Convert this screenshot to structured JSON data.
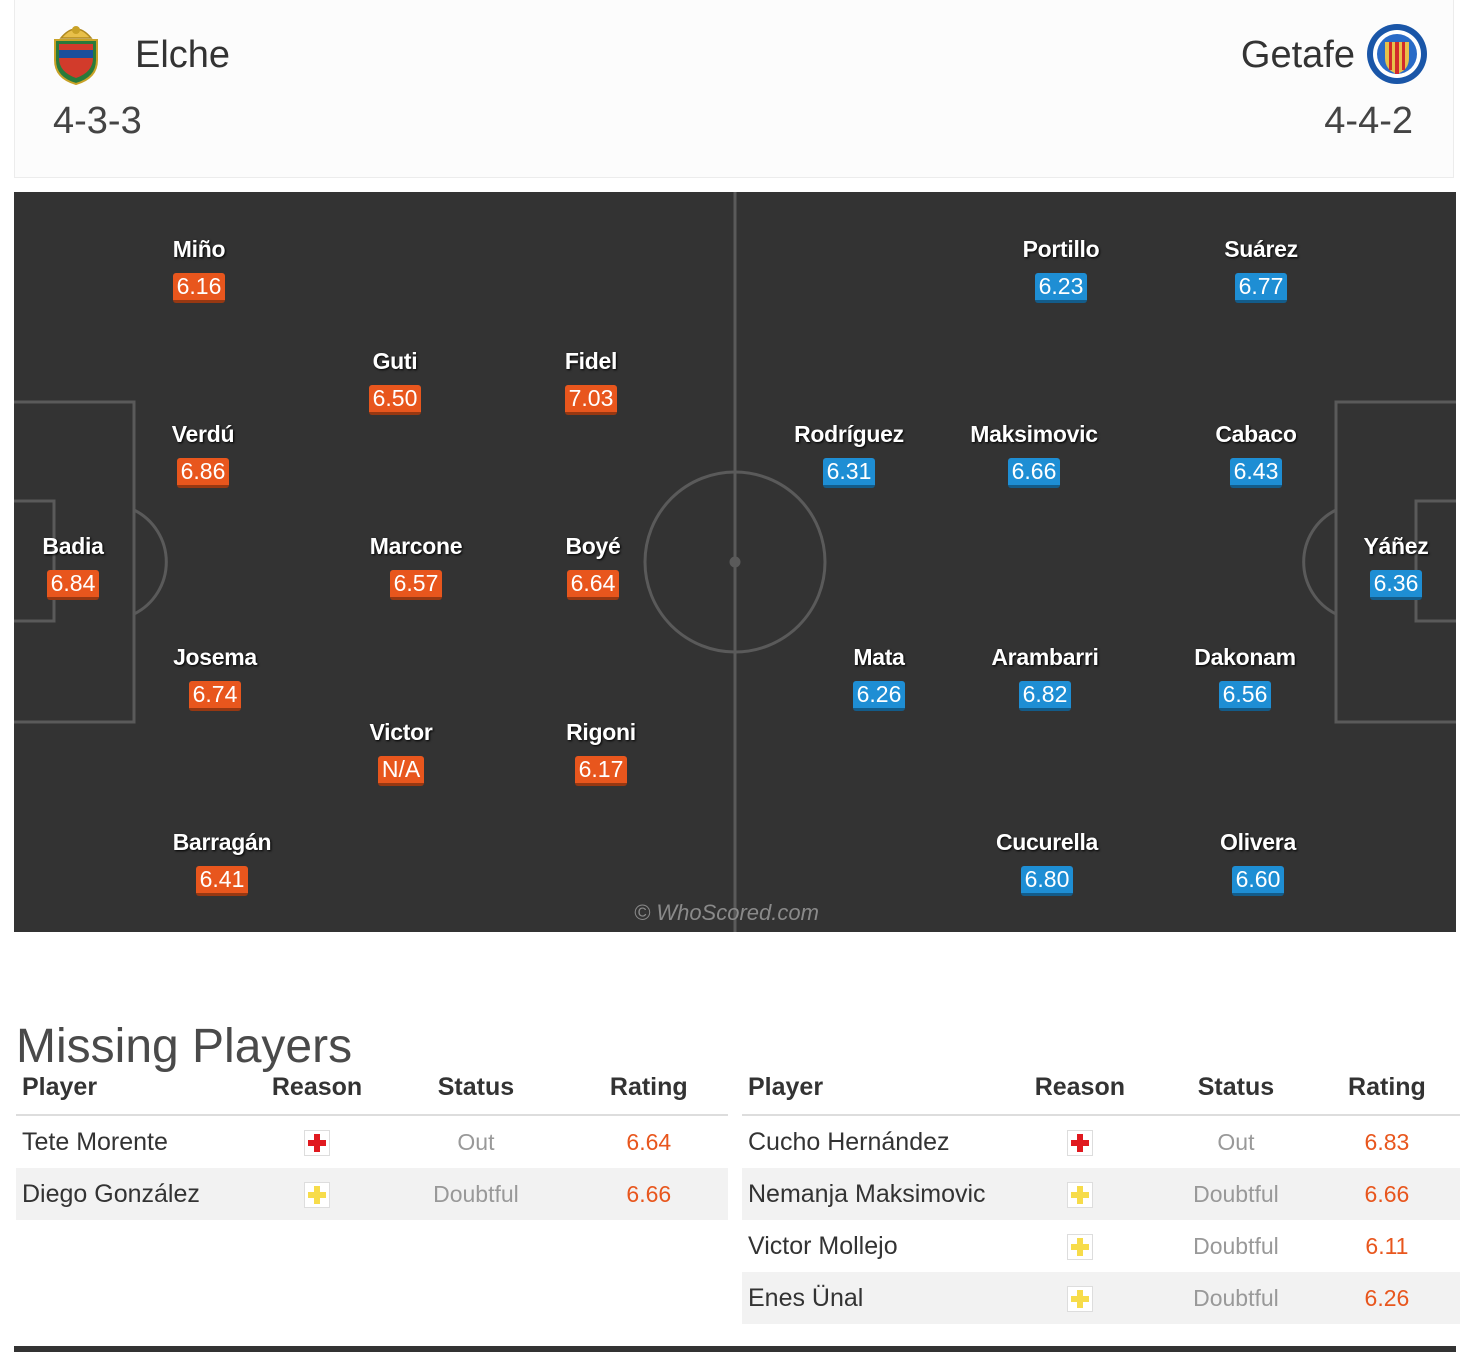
{
  "home": {
    "name": "Elche",
    "formation": "4-3-3",
    "crest_icon": "elche-crest-icon",
    "players": [
      {
        "name": "Miño",
        "rating": "6.16"
      },
      {
        "name": "Guti",
        "rating": "6.50"
      },
      {
        "name": "Fidel",
        "rating": "7.03"
      },
      {
        "name": "Verdú",
        "rating": "6.86"
      },
      {
        "name": "Badia",
        "rating": "6.84"
      },
      {
        "name": "Marcone",
        "rating": "6.57"
      },
      {
        "name": "Boyé",
        "rating": "6.64"
      },
      {
        "name": "Josema",
        "rating": "6.74"
      },
      {
        "name": "Victor",
        "rating": "N/A"
      },
      {
        "name": "Rigoni",
        "rating": "6.17"
      },
      {
        "name": "Barragán",
        "rating": "6.41"
      }
    ]
  },
  "away": {
    "name": "Getafe",
    "formation": "4-4-2",
    "crest_icon": "getafe-crest-icon",
    "players": [
      {
        "name": "Portillo",
        "rating": "6.23"
      },
      {
        "name": "Suárez",
        "rating": "6.77"
      },
      {
        "name": "Rodríguez",
        "rating": "6.31"
      },
      {
        "name": "Maksimovic",
        "rating": "6.66"
      },
      {
        "name": "Cabaco",
        "rating": "6.43"
      },
      {
        "name": "Yáñez",
        "rating": "6.36"
      },
      {
        "name": "Mata",
        "rating": "6.26"
      },
      {
        "name": "Arambarri",
        "rating": "6.82"
      },
      {
        "name": "Dakonam",
        "rating": "6.56"
      },
      {
        "name": "Cucurella",
        "rating": "6.80"
      },
      {
        "name": "Olivera",
        "rating": "6.60"
      }
    ]
  },
  "watermark": "© WhoScored.com",
  "colors": {
    "home_rating": "#e8561d",
    "away_rating": "#1e8ed4",
    "pitch": "#333333"
  },
  "missing": {
    "title": "Missing Players",
    "headers": {
      "player": "Player",
      "reason": "Reason",
      "status": "Status",
      "rating": "Rating"
    },
    "home": [
      {
        "player": "Tete Morente",
        "reason": "out",
        "status": "Out",
        "rating": "6.64"
      },
      {
        "player": "Diego González",
        "reason": "doubtful",
        "status": "Doubtful",
        "rating": "6.66"
      }
    ],
    "away": [
      {
        "player": "Cucho Hernández",
        "reason": "out",
        "status": "Out",
        "rating": "6.83"
      },
      {
        "player": "Nemanja Maksimovic",
        "reason": "doubtful",
        "status": "Doubtful",
        "rating": "6.66"
      },
      {
        "player": "Victor Mollejo",
        "reason": "doubtful",
        "status": "Doubtful",
        "rating": "6.11"
      },
      {
        "player": "Enes Ünal",
        "reason": "doubtful",
        "status": "Doubtful",
        "rating": "6.26"
      }
    ]
  }
}
